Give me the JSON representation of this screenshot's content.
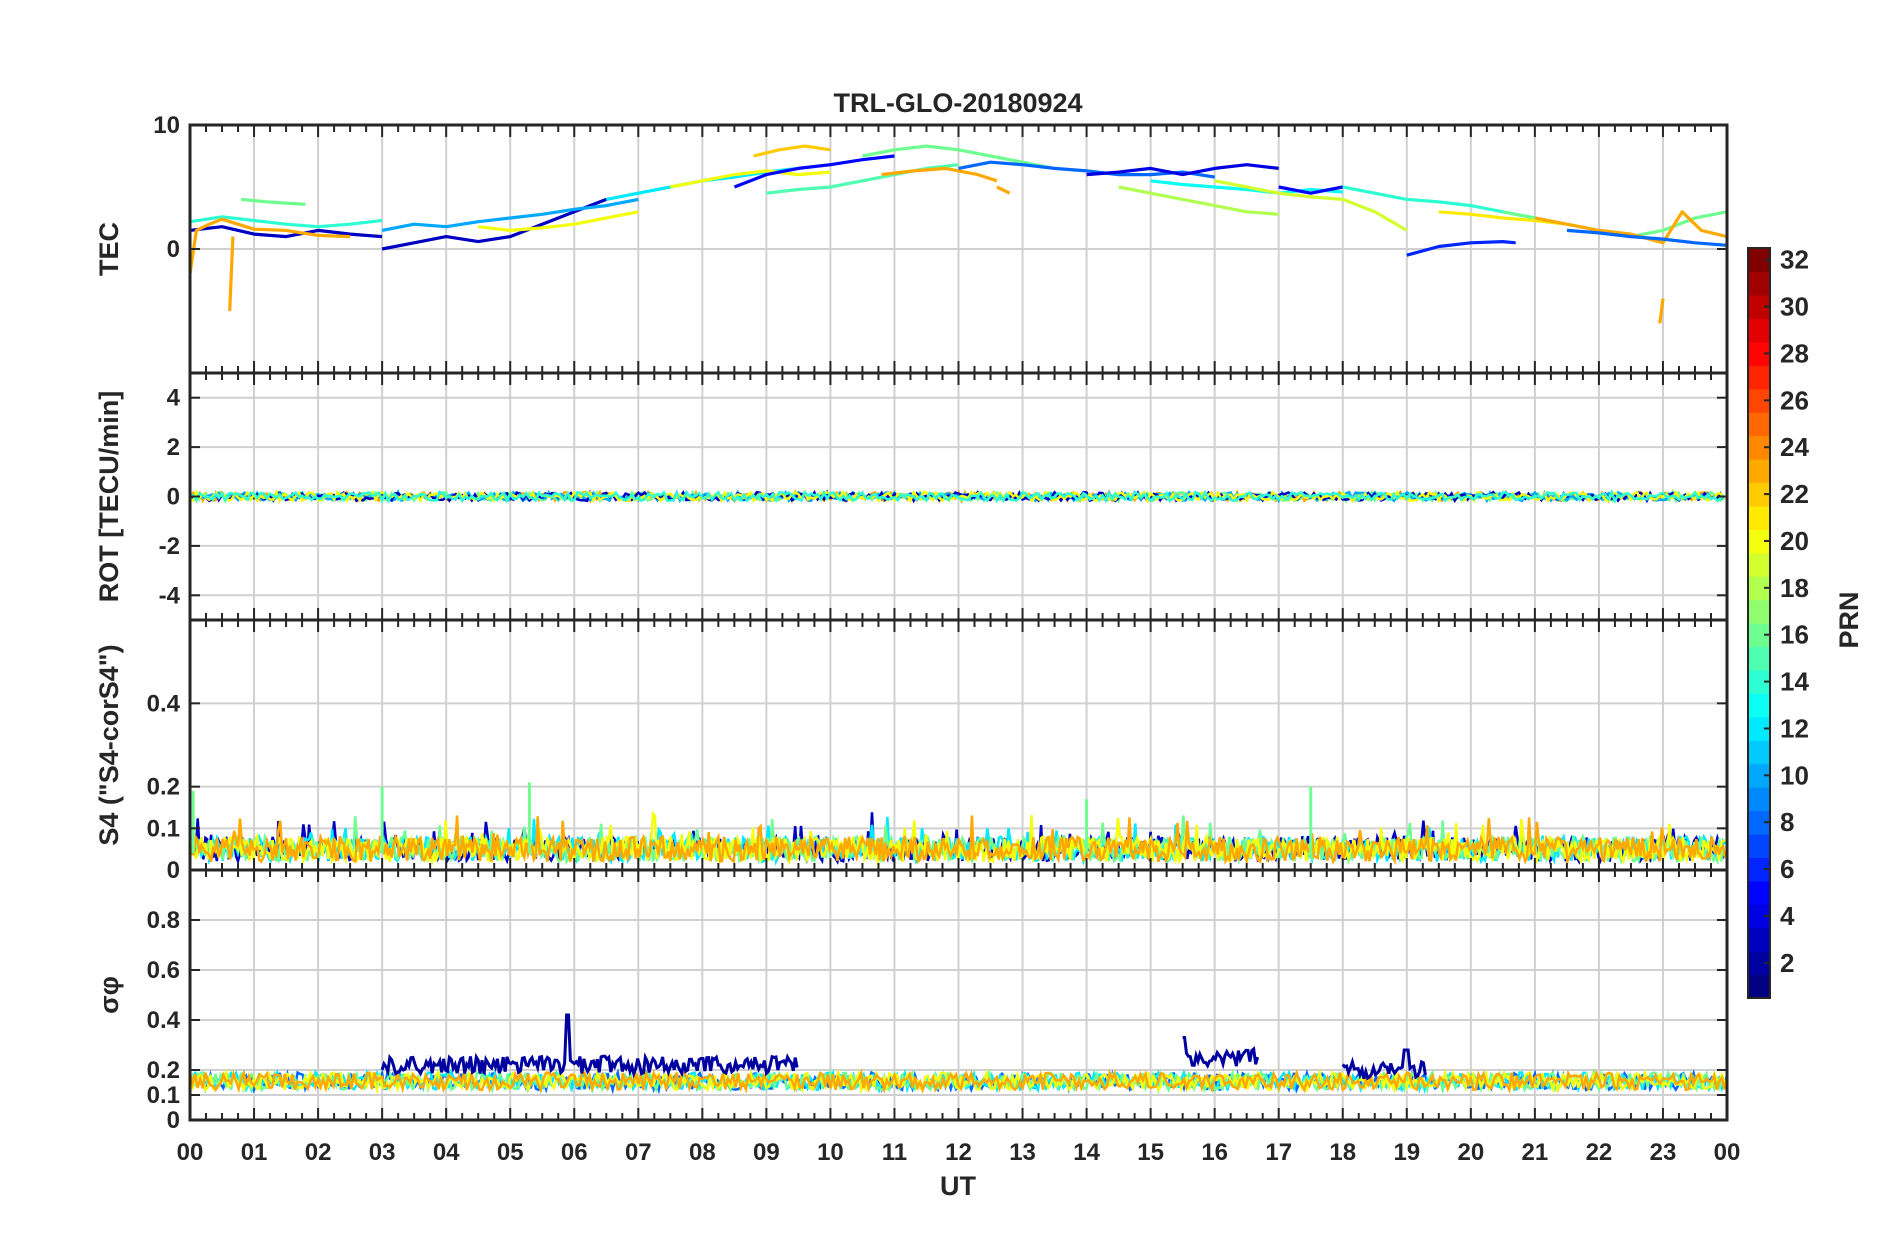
{
  "figure": {
    "title": "TRL-GLO-20180924",
    "xlabel": "UT",
    "colorbar_label": "PRN"
  },
  "chart_data": [
    {
      "type": "line",
      "panel": "tec",
      "ylabel": "TEC",
      "xlim": [
        0,
        24
      ],
      "ylim": [
        -10,
        10
      ],
      "y_ticks": [
        "10",
        "0"
      ],
      "grid": true,
      "series_note": "multiple satellite arcs colored by PRN",
      "series": [
        {
          "prn": 3,
          "x": [
            0.0,
            0.5,
            1.0,
            1.5,
            2.0,
            2.5,
            3.0
          ],
          "y": [
            1.5,
            1.8,
            1.2,
            1.0,
            1.5,
            1.2,
            1.0
          ]
        },
        {
          "prn": 14,
          "x": [
            0.0,
            0.5,
            1.0,
            1.5,
            2.0,
            2.5,
            3.0
          ],
          "y": [
            2.2,
            2.6,
            2.3,
            2.0,
            1.8,
            2.0,
            2.3
          ]
        },
        {
          "prn": 23,
          "x": [
            0.0,
            0.1,
            0.3,
            0.5,
            1.0,
            1.5,
            2.0,
            2.5
          ],
          "y": [
            -2.0,
            1.5,
            2.0,
            2.4,
            1.6,
            1.5,
            1.1,
            1.0
          ]
        },
        {
          "prn": 23,
          "x": [
            0.62,
            0.67
          ],
          "y": [
            -5.0,
            1.0
          ]
        },
        {
          "prn": 16,
          "x": [
            0.8,
            1.2,
            1.8
          ],
          "y": [
            4.0,
            3.8,
            3.6
          ]
        },
        {
          "prn": 3,
          "x": [
            3.0,
            3.5,
            4.0,
            4.5,
            5.0,
            5.5,
            6.0,
            6.5
          ],
          "y": [
            0.0,
            0.5,
            1.0,
            0.6,
            1.0,
            2.0,
            3.0,
            4.0
          ]
        },
        {
          "prn": 10,
          "x": [
            3.0,
            3.5,
            4.0,
            4.5,
            5.0,
            5.5,
            6.0,
            6.5,
            7.0
          ],
          "y": [
            1.5,
            2.0,
            1.8,
            2.2,
            2.5,
            2.8,
            3.2,
            3.5,
            4.0
          ]
        },
        {
          "prn": 20,
          "x": [
            4.5,
            5.0,
            5.5,
            6.0,
            6.5,
            7.0
          ],
          "y": [
            1.8,
            1.5,
            1.7,
            2.0,
            2.5,
            3.0
          ]
        },
        {
          "prn": 12,
          "x": [
            6.5,
            7.0,
            7.5,
            8.0,
            8.5,
            9.0,
            9.5
          ],
          "y": [
            4.0,
            4.5,
            5.0,
            5.5,
            5.8,
            6.2,
            6.5
          ]
        },
        {
          "prn": 20,
          "x": [
            7.5,
            8.0,
            8.5,
            9.0,
            9.5,
            10.0
          ],
          "y": [
            5.0,
            5.5,
            6.0,
            6.3,
            6.0,
            6.2
          ]
        },
        {
          "prn": 22,
          "x": [
            8.8,
            9.2,
            9.6,
            10.0
          ],
          "y": [
            7.5,
            8.0,
            8.3,
            8.0
          ]
        },
        {
          "prn": 5,
          "x": [
            8.5,
            9.0,
            9.5,
            10.0,
            10.5,
            11.0
          ],
          "y": [
            5.0,
            6.0,
            6.5,
            6.8,
            7.2,
            7.5
          ]
        },
        {
          "prn": 15,
          "x": [
            9.0,
            9.5,
            10.0,
            10.5,
            11.0,
            11.5,
            12.0
          ],
          "y": [
            4.5,
            4.8,
            5.0,
            5.5,
            6.0,
            6.5,
            6.8
          ]
        },
        {
          "prn": 16,
          "x": [
            10.5,
            11.0,
            11.5,
            12.0,
            12.5,
            13.0,
            13.5
          ],
          "y": [
            7.5,
            8.0,
            8.3,
            8.0,
            7.5,
            7.0,
            6.5
          ]
        },
        {
          "prn": 23,
          "x": [
            10.8,
            11.3,
            11.8,
            12.3,
            12.6
          ],
          "y": [
            6.0,
            6.3,
            6.5,
            6.0,
            5.5
          ]
        },
        {
          "prn": 23,
          "x": [
            12.6,
            12.8
          ],
          "y": [
            5.0,
            4.5
          ]
        },
        {
          "prn": 8,
          "x": [
            12.0,
            12.5,
            13.0,
            13.5,
            14.0,
            14.5,
            15.0,
            15.5,
            16.0
          ],
          "y": [
            6.5,
            7.0,
            6.8,
            6.5,
            6.3,
            6.0,
            6.0,
            6.2,
            5.8
          ]
        },
        {
          "prn": 4,
          "x": [
            14.0,
            14.5,
            15.0,
            15.5,
            16.0,
            16.5,
            17.0
          ],
          "y": [
            6.0,
            6.2,
            6.5,
            6.0,
            6.5,
            6.8,
            6.5
          ]
        },
        {
          "prn": 18,
          "x": [
            14.5,
            15.0,
            15.5,
            16.0,
            16.5,
            17.0
          ],
          "y": [
            5.0,
            4.5,
            4.0,
            3.5,
            3.0,
            2.8
          ]
        },
        {
          "prn": 13,
          "x": [
            15.0,
            15.5,
            16.0,
            16.5,
            17.0,
            17.5,
            18.0
          ],
          "y": [
            5.5,
            5.2,
            5.0,
            4.8,
            4.5,
            4.8,
            4.6
          ]
        },
        {
          "prn": 19,
          "x": [
            16.0,
            16.5,
            17.0,
            17.5,
            18.0,
            18.5,
            19.0
          ],
          "y": [
            5.5,
            5.0,
            4.5,
            4.2,
            4.0,
            3.0,
            1.5
          ]
        },
        {
          "prn": 5,
          "x": [
            17.0,
            17.5,
            18.0
          ],
          "y": [
            5.0,
            4.5,
            5.0
          ]
        },
        {
          "prn": 14,
          "x": [
            18.0,
            18.5,
            19.0,
            19.5,
            20.0,
            20.5,
            21.0
          ],
          "y": [
            5.0,
            4.5,
            4.0,
            3.8,
            3.5,
            3.0,
            2.5
          ]
        },
        {
          "prn": 6,
          "x": [
            19.0,
            19.5,
            20.0,
            20.5,
            20.7
          ],
          "y": [
            -0.5,
            0.2,
            0.5,
            0.6,
            0.5
          ]
        },
        {
          "prn": 21,
          "x": [
            19.5,
            20.0,
            20.5,
            21.0,
            21.5
          ],
          "y": [
            3.0,
            2.8,
            2.5,
            2.3,
            2.0
          ]
        },
        {
          "prn": 16,
          "x": [
            20.5,
            21.0,
            21.5,
            22.0,
            22.5,
            23.0,
            23.5,
            24.0
          ],
          "y": [
            3.0,
            2.5,
            2.0,
            1.5,
            1.0,
            1.5,
            2.5,
            3.0
          ]
        },
        {
          "prn": 23,
          "x": [
            21.0,
            21.5,
            22.0,
            22.5,
            23.0,
            23.3,
            23.6,
            24.0
          ],
          "y": [
            2.5,
            2.0,
            1.5,
            1.2,
            0.5,
            3.0,
            1.5,
            1.0
          ]
        },
        {
          "prn": 8,
          "x": [
            21.5,
            22.0,
            22.5,
            23.0,
            23.5,
            24.0
          ],
          "y": [
            1.5,
            1.3,
            1.0,
            0.8,
            0.5,
            0.3
          ]
        },
        {
          "prn": 23,
          "x": [
            22.95,
            23.0
          ],
          "y": [
            -6.0,
            -4.0
          ]
        }
      ]
    },
    {
      "type": "line",
      "panel": "rot",
      "ylabel": "ROT [TECU/min]",
      "xlim": [
        0,
        24
      ],
      "ylim": [
        -5,
        5
      ],
      "y_ticks": [
        "4",
        "2",
        "0",
        "-2",
        "-4"
      ],
      "grid": true,
      "series_note": "all arcs within about ±0.3 TECU/min",
      "typical_range": [
        -0.3,
        0.3
      ]
    },
    {
      "type": "line",
      "panel": "s4",
      "ylabel": "S4 (\"S4-corS4\")",
      "xlim": [
        0,
        24
      ],
      "ylim": [
        0,
        0.6
      ],
      "y_ticks": [
        "0.4",
        "0.2",
        "0.1",
        "0"
      ],
      "grid": true,
      "series_note": "noise level mostly 0–0.1 with spikes to about 0.2",
      "peaks": [
        {
          "x": 0.05,
          "y": 0.19
        },
        {
          "x": 3.0,
          "y": 0.2
        },
        {
          "x": 5.3,
          "y": 0.21
        },
        {
          "x": 14.0,
          "y": 0.17
        },
        {
          "x": 17.5,
          "y": 0.2
        },
        {
          "x": 24.0,
          "y": 0.16
        }
      ]
    },
    {
      "type": "line",
      "panel": "sigma_phi",
      "ylabel": "σφ",
      "xlim": [
        0,
        24
      ],
      "ylim": [
        0,
        1
      ],
      "y_ticks": [
        "0.8",
        "0.6",
        "0.4",
        "0.2",
        "0.1",
        "0"
      ],
      "grid": true,
      "series_note": "baseline about 0.1–0.2; PRN ~2 elevated 03–09.5 UT and 15.5–16.7 UT and 18–19.3 UT",
      "elevated_segments": [
        {
          "prn": 2,
          "x_start": 3.0,
          "x_end": 9.5,
          "level": 0.22,
          "peak": 0.42,
          "peak_x": 5.9
        },
        {
          "prn": 2,
          "x_start": 15.5,
          "x_end": 16.7,
          "level": 0.25,
          "peak": 0.33,
          "peak_x": 15.5
        },
        {
          "prn": 2,
          "x_start": 18.0,
          "x_end": 19.3,
          "level": 0.2,
          "peak": 0.28,
          "peak_x": 19.0
        }
      ]
    }
  ],
  "x_axis": {
    "ticks": [
      "00",
      "01",
      "02",
      "03",
      "04",
      "05",
      "06",
      "07",
      "08",
      "09",
      "10",
      "11",
      "12",
      "13",
      "14",
      "15",
      "16",
      "17",
      "18",
      "19",
      "20",
      "21",
      "22",
      "23",
      "00"
    ]
  },
  "colorbar": {
    "range": [
      1,
      32
    ],
    "ticks": [
      "32",
      "30",
      "28",
      "26",
      "24",
      "22",
      "20",
      "18",
      "16",
      "14",
      "12",
      "10",
      "8",
      "6",
      "4",
      "2"
    ],
    "colormap": "jet"
  }
}
